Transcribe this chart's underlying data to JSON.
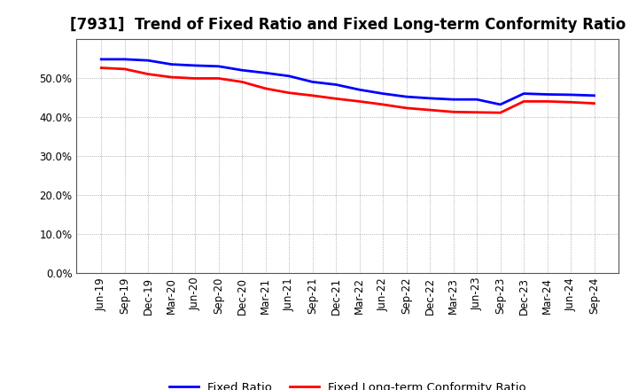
{
  "title": "[7931]  Trend of Fixed Ratio and Fixed Long-term Conformity Ratio",
  "labels": [
    "Jun-19",
    "Sep-19",
    "Dec-19",
    "Mar-20",
    "Jun-20",
    "Sep-20",
    "Dec-20",
    "Mar-21",
    "Jun-21",
    "Sep-21",
    "Dec-21",
    "Mar-22",
    "Jun-22",
    "Sep-22",
    "Dec-22",
    "Mar-23",
    "Jun-23",
    "Sep-23",
    "Dec-23",
    "Mar-24",
    "Jun-24",
    "Sep-24"
  ],
  "fixed_ratio": [
    0.548,
    0.548,
    0.545,
    0.535,
    0.532,
    0.53,
    0.52,
    0.513,
    0.505,
    0.49,
    0.483,
    0.47,
    0.46,
    0.452,
    0.448,
    0.445,
    0.445,
    0.432,
    0.46,
    0.458,
    0.457,
    0.455
  ],
  "fixed_lt_ratio": [
    0.526,
    0.523,
    0.51,
    0.502,
    0.499,
    0.499,
    0.49,
    0.473,
    0.462,
    0.455,
    0.447,
    0.44,
    0.432,
    0.423,
    0.418,
    0.413,
    0.412,
    0.411,
    0.44,
    0.44,
    0.438,
    0.435
  ],
  "fixed_ratio_color": "#0000FF",
  "fixed_lt_ratio_color": "#FF0000",
  "background_color": "#FFFFFF",
  "grid_color": "#999999",
  "ylim": [
    0.0,
    0.6
  ],
  "yticks": [
    0.0,
    0.1,
    0.2,
    0.3,
    0.4,
    0.5
  ],
  "legend_labels": [
    "Fixed Ratio",
    "Fixed Long-term Conformity Ratio"
  ],
  "title_fontsize": 12,
  "axis_fontsize": 8.5,
  "legend_fontsize": 9.5,
  "linewidth": 2.0
}
